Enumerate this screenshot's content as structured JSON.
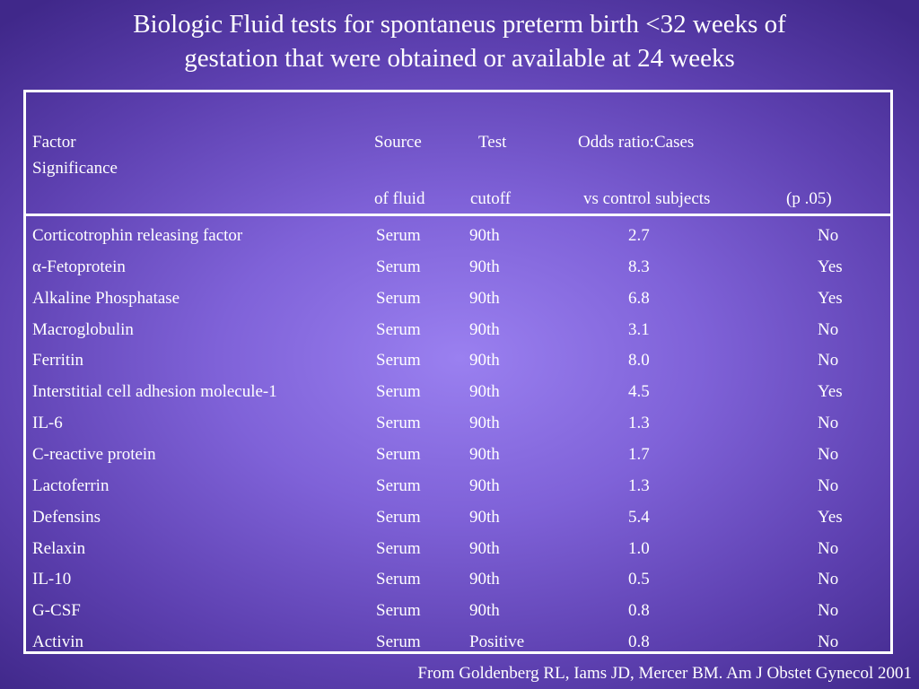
{
  "slide": {
    "title_line1": "Biologic Fluid tests for spontaneus preterm birth <32 weeks of",
    "title_line2": "gestation that were obtained or available at 24 weeks",
    "source": "From Goldenberg RL, Iams JD, Mercer  BM. Am J Obstet Gynecol 2001"
  },
  "table": {
    "header": {
      "factor": "Factor",
      "significance": "Significance",
      "source_l1": "Source",
      "source_l2": "of fluid",
      "test_l1": "Test",
      "test_l2": "cutoff",
      "odds_l1": "Odds ratio:Cases",
      "odds_l2": "vs control subjects",
      "sig_l2": "(p   .05)"
    },
    "rows": [
      {
        "factor": "Corticotrophin releasing factor",
        "source": "Serum",
        "cutoff": "90th",
        "odds": "2.7",
        "sig": "No"
      },
      {
        "factor": "α-Fetoprotein",
        "source": "Serum",
        "cutoff": "90th",
        "odds": "8.3",
        "sig": "Yes"
      },
      {
        "factor": "Alkaline Phosphatase",
        "source": "Serum",
        "cutoff": "90th",
        "odds": "6.8",
        "sig": "Yes"
      },
      {
        "factor": "Macroglobulin",
        "source": "Serum",
        "cutoff": "90th",
        "odds": "3.1",
        "sig": "No"
      },
      {
        "factor": "Ferritin",
        "source": "Serum",
        "cutoff": "90th",
        "odds": "8.0",
        "sig": "No"
      },
      {
        "factor": "Interstitial cell adhesion molecule-1",
        "source": "Serum",
        "cutoff": "90th",
        "odds": "4.5",
        "sig": "Yes"
      },
      {
        "factor": "IL-6",
        "source": "Serum",
        "cutoff": "90th",
        "odds": "1.3",
        "sig": "No"
      },
      {
        "factor": "C-reactive protein",
        "source": "Serum",
        "cutoff": "90th",
        "odds": "1.7",
        "sig": "No"
      },
      {
        "factor": "Lactoferrin",
        "source": "Serum",
        "cutoff": "90th",
        "odds": "1.3",
        "sig": "No"
      },
      {
        "factor": "Defensins",
        "source": "Serum",
        "cutoff": "90th",
        "odds": "5.4",
        "sig": "Yes"
      },
      {
        "factor": "Relaxin",
        "source": "Serum",
        "cutoff": "90th",
        "odds": "1.0",
        "sig": "No"
      },
      {
        "factor": "IL-10",
        "source": "Serum",
        "cutoff": "90th",
        "odds": "0.5",
        "sig": "No"
      },
      {
        "factor": "G-CSF",
        "source": "Serum",
        "cutoff": "90th",
        "odds": "0.8",
        "sig": "No"
      },
      {
        "factor": "Activin",
        "source": "Serum",
        "cutoff": "Positive",
        "odds": "0.8",
        "sig": "No"
      }
    ]
  }
}
